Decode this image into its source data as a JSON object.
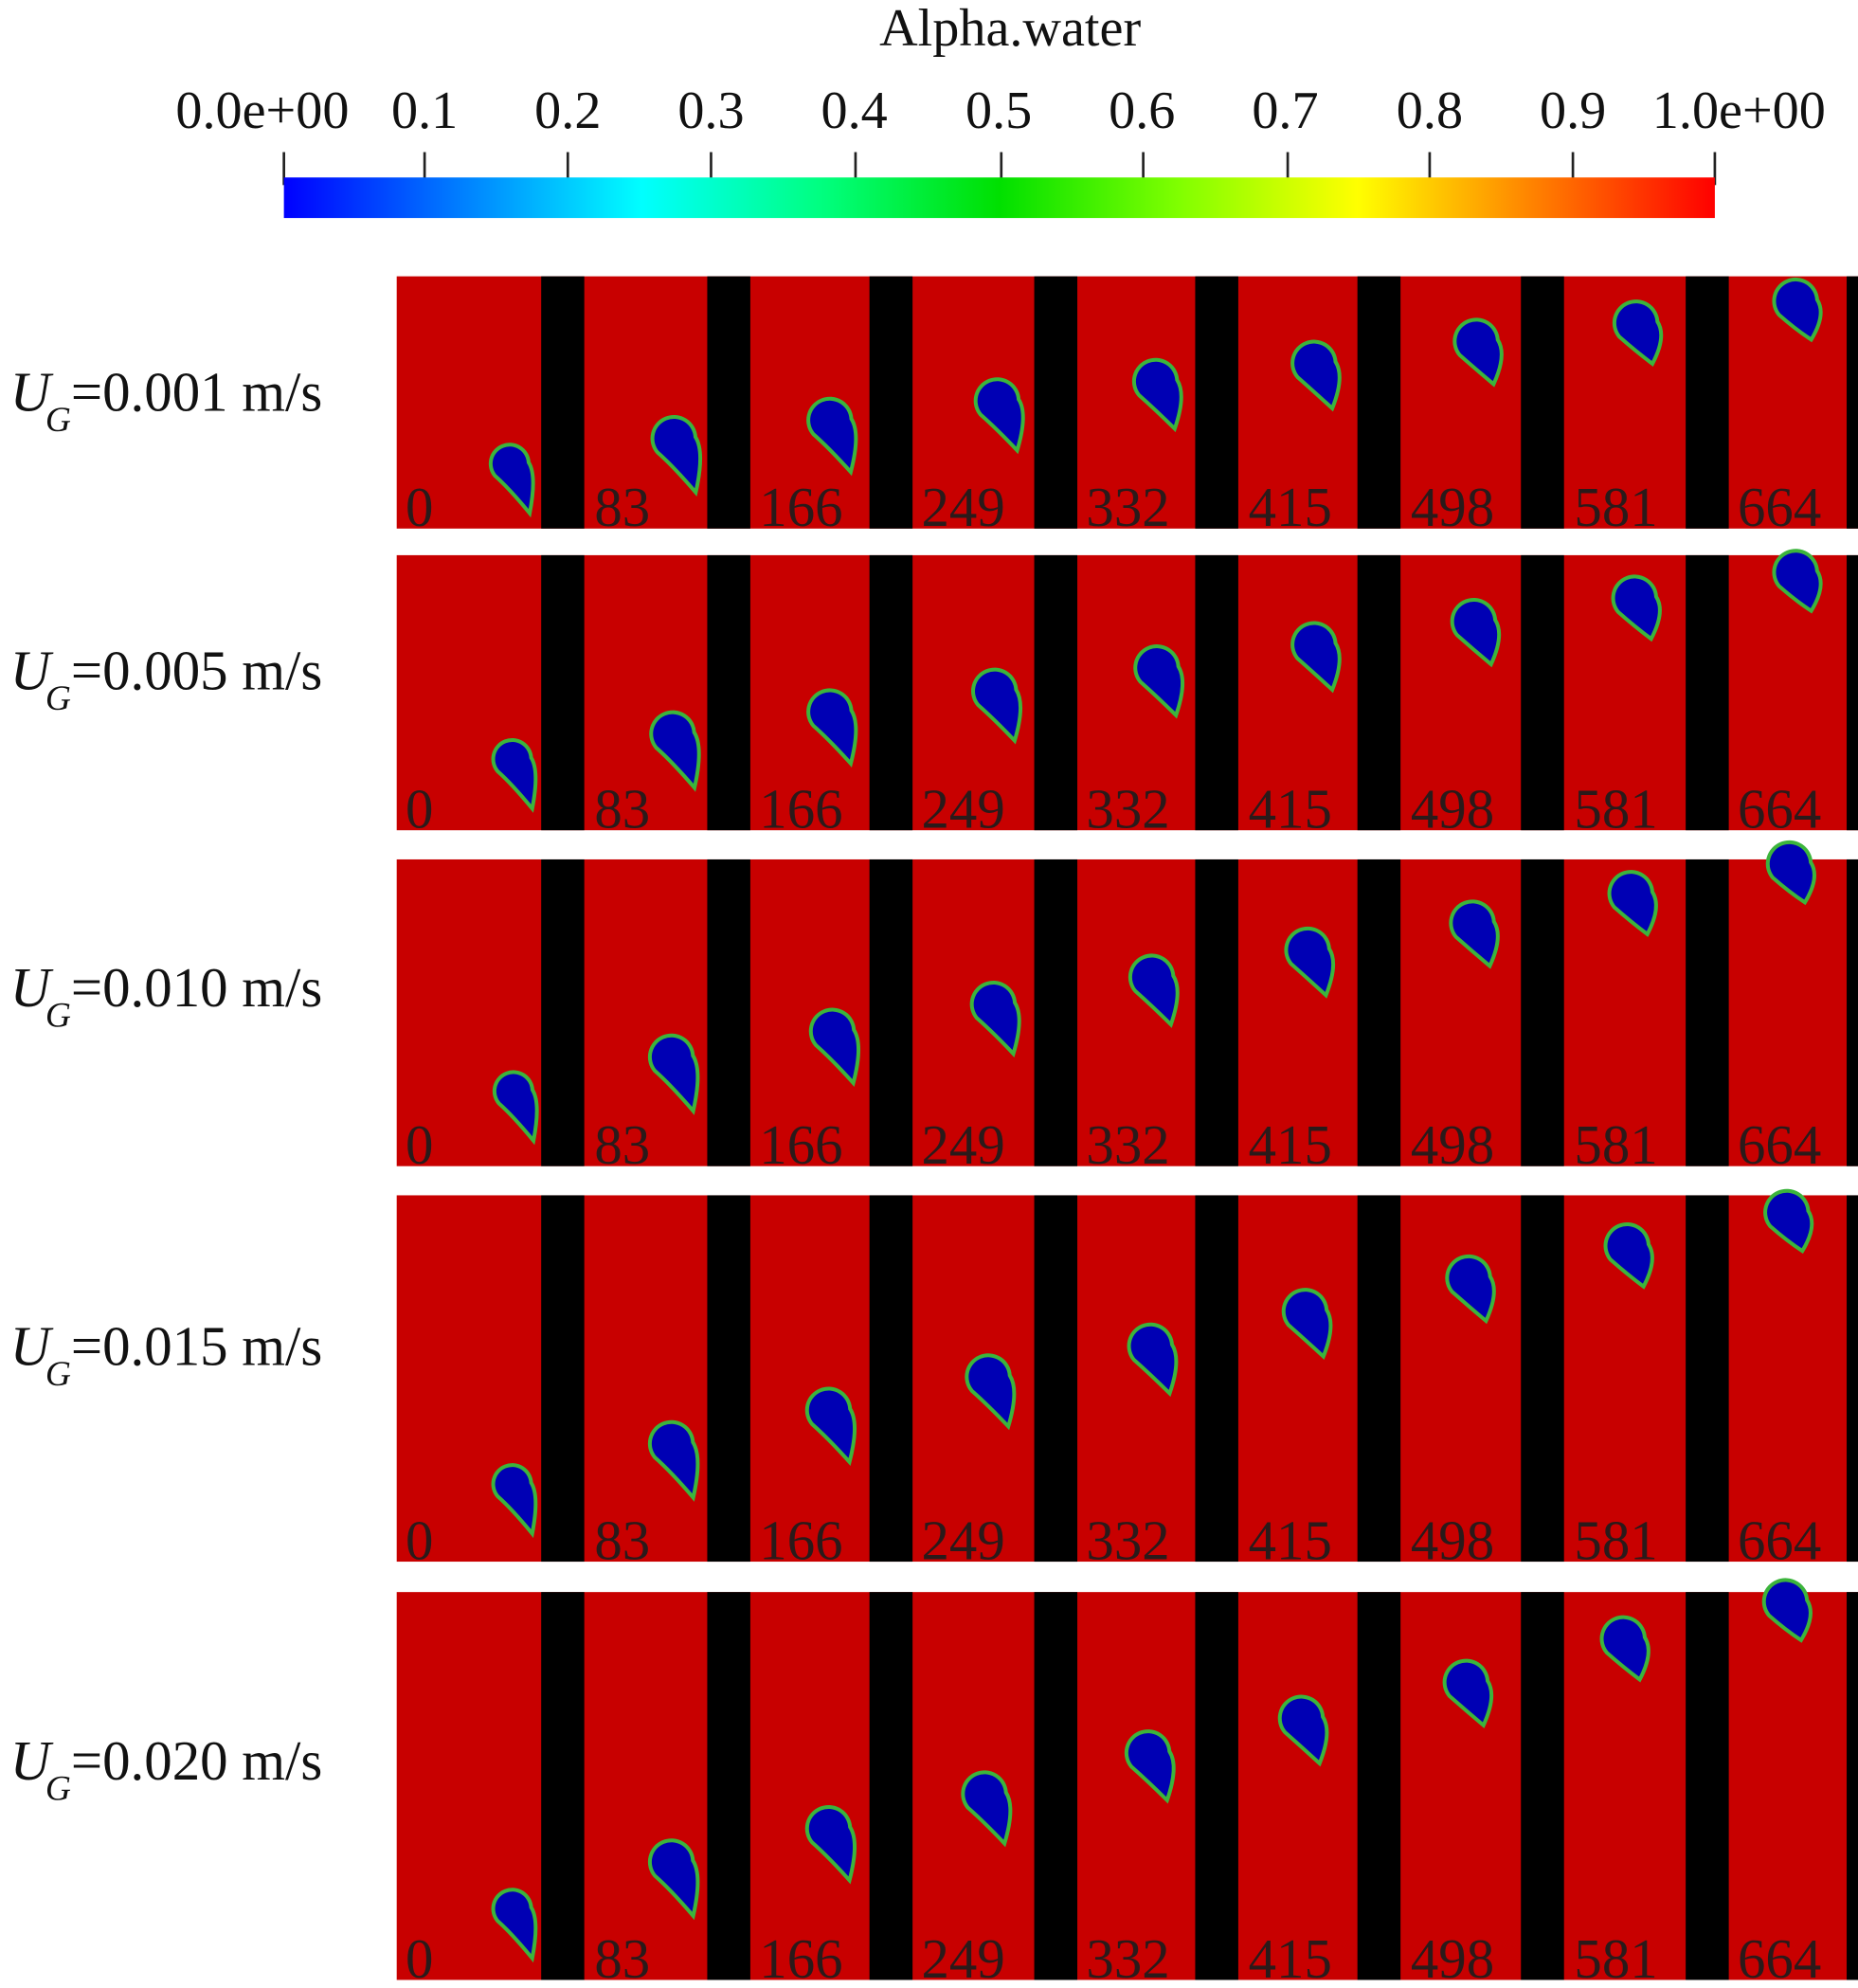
{
  "colorbar": {
    "title": "Alpha.water",
    "tick_labels": [
      "0.0e+00",
      "0.1",
      "0.2",
      "0.3",
      "0.4",
      "0.5",
      "0.6",
      "0.7",
      "0.8",
      "0.9",
      "1.0e+00"
    ],
    "range": [
      0,
      1
    ],
    "colormap": [
      "#0000ff",
      "#0080ff",
      "#00ffff",
      "#00ff80",
      "#00e000",
      "#80ff00",
      "#ffff00",
      "#ff8000",
      "#ff0000"
    ]
  },
  "colors": {
    "liquid": "#c80000",
    "gas": "#0000b4",
    "interface": "#3cb43c",
    "separator": "#000000"
  },
  "time_labels": [
    "0",
    "83",
    "166",
    "249",
    "332",
    "415",
    "498",
    "581",
    "664"
  ],
  "rows": [
    {
      "symbol": "U",
      "subscript": "G",
      "value": "=0.001 m/s"
    },
    {
      "symbol": "U",
      "subscript": "G",
      "value": "=0.005 m/s"
    },
    {
      "symbol": "U",
      "subscript": "G",
      "value": "=0.010 m/s"
    },
    {
      "symbol": "U",
      "subscript": "G",
      "value": "=0.015 m/s"
    },
    {
      "symbol": "U",
      "subscript": "G",
      "value": "=0.020 m/s"
    }
  ]
}
